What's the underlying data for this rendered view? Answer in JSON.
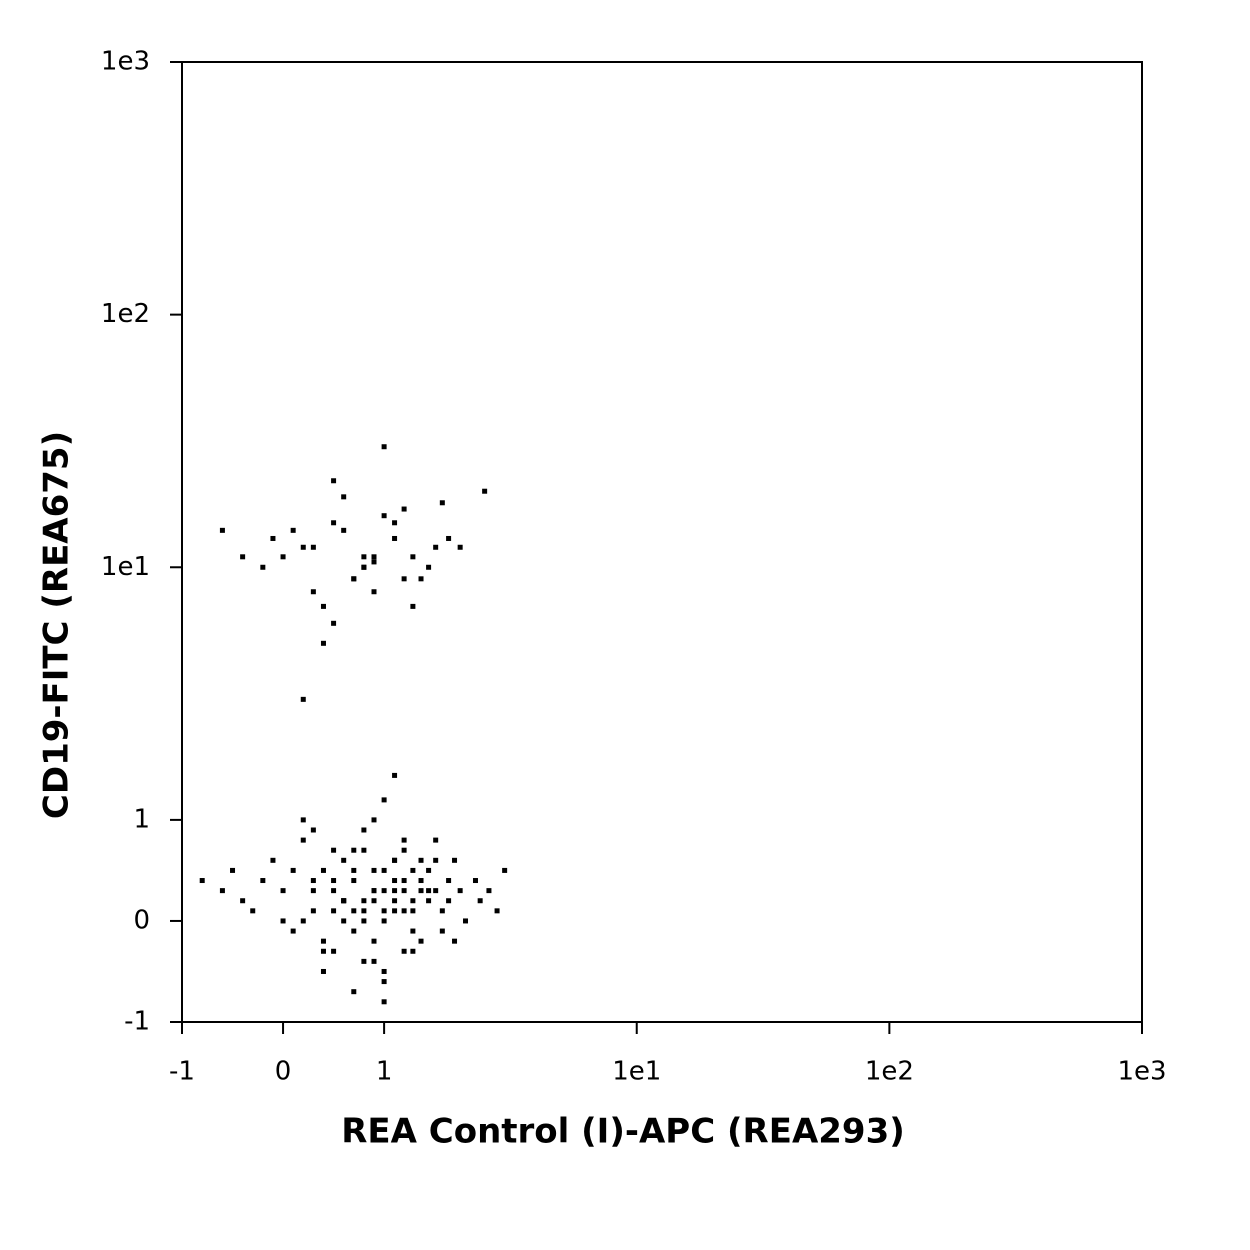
{
  "chart_data": {
    "type": "scatter",
    "x_label": "REA Control (I)-APC (REA293)",
    "y_label": "CD19-FITC (REA675)",
    "scale": "biexponential",
    "color": "#000000",
    "xlim": [
      -1,
      1000
    ],
    "ylim": [
      -1,
      1000
    ],
    "xticks": [
      -1,
      0,
      1,
      {
        "value": 10,
        "label": "1e1"
      },
      {
        "value": 100,
        "label": "1e2"
      },
      {
        "value": 1000,
        "label": "1e3"
      }
    ],
    "yticks": [
      -1,
      0,
      1,
      {
        "value": 10,
        "label": "1e1"
      },
      {
        "value": 100,
        "label": "1e2"
      },
      {
        "value": 1000,
        "label": "1e3"
      }
    ],
    "x": [
      0.2,
      0.5,
      0.8,
      1.1,
      1.4,
      0.0,
      0.3,
      0.6,
      0.9,
      1.2,
      1.6,
      -0.2,
      0.4,
      0.7,
      1.0,
      1.3,
      1.8,
      0.1,
      0.5,
      0.8,
      -0.4,
      0.6,
      1.5,
      0.9,
      0.3,
      1.1,
      2.0,
      0.7,
      -0.1,
      1.3,
      0.5,
      0.4,
      1.7,
      0.8,
      1.0,
      2.5,
      0.2,
      -0.6,
      1.2,
      0.9,
      0.9,
      1.1,
      0.7,
      1.3,
      0.5,
      1.0,
      0.8,
      1.2,
      0.6,
      1.4,
      0.3,
      1.6,
      0.0,
      1.8,
      0.9,
      1.1,
      0.4,
      1.3,
      0.7,
      1.0,
      -0.2,
      2.0,
      0.5,
      1.5,
      0.8,
      1.2,
      0.2,
      1.7,
      0.6,
      0.9,
      -0.4,
      2.3,
      1.0,
      0.3,
      1.4,
      0.7,
      1.1,
      0.1,
      1.9,
      0.8,
      -0.6,
      2.6,
      0.5,
      1.2,
      0.9,
      1.3,
      0.4,
      1.6,
      0.0,
      1.0,
      0.7,
      1.1,
      0.6,
      1.5,
      -0.1,
      2.1,
      0.8,
      1.2,
      0.3,
      1.4,
      -0.8,
      3.0,
      0.9,
      1.0,
      0.5,
      1.7,
      0.2,
      1.3,
      0.7,
      1.1,
      0.4,
      1.8,
      -0.3,
      2.4,
      0.6,
      1.2,
      0.9,
      1.0,
      0.1,
      1.5,
      0.8,
      1.3,
      0.5,
      1.1,
      -0.5,
      2.8,
      0.7,
      1.6,
      0.3,
      1.0,
      0.6,
      1.4,
      0.2,
      1.9,
      0.9,
      1.2,
      0.4,
      1.1,
      0.8,
      1.0
    ],
    "values": [
      12,
      15,
      10,
      13,
      9,
      11,
      8,
      14,
      11,
      17,
      12,
      10,
      7,
      9,
      16,
      11,
      13,
      14,
      6,
      10,
      11,
      19,
      10,
      8,
      12,
      15,
      12,
      9,
      13,
      7,
      22,
      5,
      18,
      11,
      30,
      20,
      3,
      14,
      9,
      10.5,
      0.3,
      0.2,
      0.4,
      0.1,
      0.3,
      0.5,
      0.0,
      0.3,
      0.2,
      0.4,
      0.1,
      0.3,
      0.3,
      0.2,
      -0.2,
      0.6,
      0.5,
      -0.1,
      0.7,
      0.1,
      0.4,
      0.3,
      -0.3,
      0.5,
      0.2,
      0.8,
      0.0,
      0.1,
      0.6,
      -0.4,
      0.2,
      0.4,
      0.3,
      0.9,
      -0.2,
      -0.1,
      0.4,
      0.5,
      0.6,
      0.7,
      0.3,
      0.3,
      0.1,
      -0.3,
      1.0,
      0.2,
      -0.2,
      0.8,
      0.0,
      -0.5,
      0.5,
      0.6,
      0.2,
      0.3,
      0.6,
      0.0,
      -0.4,
      0.1,
      0.4,
      0.6,
      0.4,
      0.5,
      0.2,
      -0.6,
      0.7,
      -0.1,
      0.8,
      0.5,
      0.1,
      0.3,
      -0.3,
      0.4,
      0.1,
      0.2,
      0.0,
      0.7,
      0.5,
      1.2,
      -0.1,
      0.2,
      0.9,
      -0.3,
      0.4,
      0.1,
      0.5,
      0.1,
      -0.7,
      0.6,
      0.3,
      0.0,
      0.2,
      0.3,
      1.0,
      -0.2,
      0.3,
      0.4,
      -0.5,
      1.5,
      0.1,
      -0.8
    ]
  }
}
